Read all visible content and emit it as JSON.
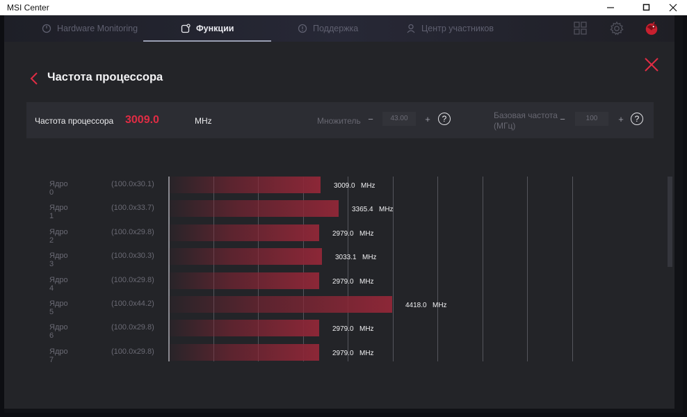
{
  "window": {
    "title": "MSI Center"
  },
  "nav": {
    "items": [
      {
        "label": "Hardware Monitoring",
        "active": false
      },
      {
        "label": "Функции",
        "active": true
      },
      {
        "label": "Поддержка",
        "active": false
      },
      {
        "label": "Центр участников",
        "active": false
      }
    ]
  },
  "page": {
    "title": "Частота процессора"
  },
  "summary": {
    "label": "Частота процессора",
    "value": "3009.0",
    "unit": "MHz",
    "multiplier_label": "Множитель",
    "multiplier_value": "43.00",
    "base_label_line1": "Базовая частота",
    "base_label_line2": "(МГц)",
    "base_value": "100",
    "minus": "−",
    "plus": "+",
    "help": "?"
  },
  "cores": [
    {
      "name": "Ядро 0",
      "ratio": "(100.0x30.1)",
      "value": "3009.0",
      "mhz": 3009.0,
      "unit": "MHz"
    },
    {
      "name": "Ядро 1",
      "ratio": "(100.0x33.7)",
      "value": "3365.4",
      "mhz": 3365.4,
      "unit": "MHz"
    },
    {
      "name": "Ядро 2",
      "ratio": "(100.0x29.8)",
      "value": "2979.0",
      "mhz": 2979.0,
      "unit": "MHz"
    },
    {
      "name": "Ядро 3",
      "ratio": "(100.0x30.3)",
      "value": "3033.1",
      "mhz": 3033.1,
      "unit": "MHz"
    },
    {
      "name": "Ядро 4",
      "ratio": "(100.0x29.8)",
      "value": "2979.0",
      "mhz": 2979.0,
      "unit": "MHz"
    },
    {
      "name": "Ядро 5",
      "ratio": "(100.0x44.2)",
      "value": "4418.0",
      "mhz": 4418.0,
      "unit": "MHz"
    },
    {
      "name": "Ядро 6",
      "ratio": "(100.0x29.8)",
      "value": "2979.0",
      "mhz": 2979.0,
      "unit": "MHz"
    },
    {
      "name": "Ядро 7",
      "ratio": "(100.0x29.8)",
      "value": "2979.0",
      "mhz": 2979.0,
      "unit": "MHz"
    }
  ],
  "colors": {
    "accent": "#e12c44",
    "bar": "#8c2737",
    "background": "#232428"
  },
  "icons": [
    "back-icon",
    "close-icon",
    "minimize-icon",
    "maximize-icon",
    "apps-grid-icon",
    "gear-icon",
    "msi-dragon-icon",
    "help-icon"
  ]
}
